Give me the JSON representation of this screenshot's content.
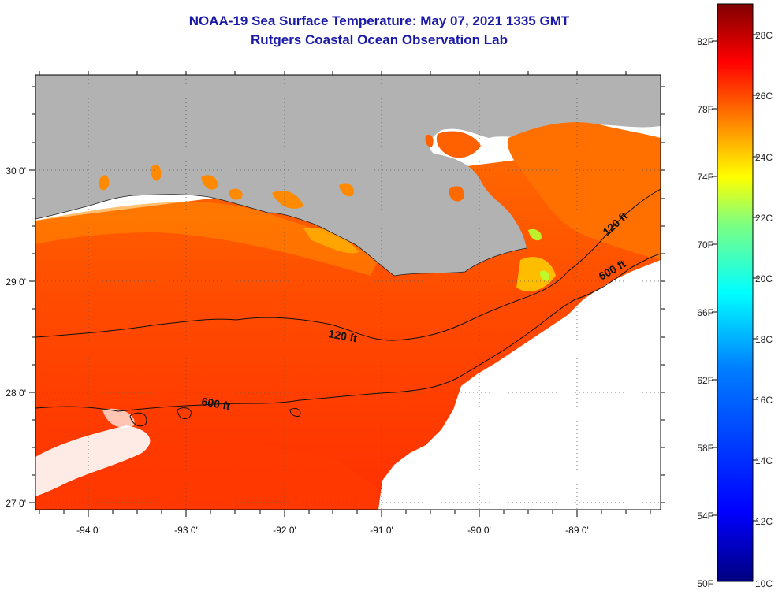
{
  "header": {
    "title": "NOAA-19 Sea Surface Temperature:  May 07, 2021 1335 GMT",
    "subtitle": "Rutgers Coastal Ocean Observation Lab"
  },
  "map": {
    "lat_labels": [
      "30 0'",
      "29 0'",
      "28 0'",
      "27 0'"
    ],
    "lon_labels": [
      "-94 0'",
      "-93 0'",
      "-92 0'",
      "-91 0'",
      "-90 0'",
      "-89 0'"
    ],
    "contours": [
      "120 ft",
      "120 ft",
      "600 ft",
      "600 ft"
    ],
    "colors": {
      "land": "#b2b2b2",
      "ocean_warm": "#ff5000",
      "ocean_hot": "#ff2800",
      "nearshore": "#ffa000"
    }
  },
  "colorbar": {
    "f_labels": [
      "82F",
      "78F",
      "74F",
      "70F",
      "66F",
      "62F",
      "58F",
      "54F",
      "50F"
    ],
    "c_labels": [
      "28C",
      "26C",
      "24C",
      "22C",
      "20C",
      "18C",
      "16C",
      "14C",
      "12C",
      "10C"
    ],
    "gradient": [
      "#00007f",
      "#0000ff",
      "#007fff",
      "#00ffff",
      "#7fff7f",
      "#ffff00",
      "#ff7f00",
      "#ff0000",
      "#7f0000"
    ]
  }
}
